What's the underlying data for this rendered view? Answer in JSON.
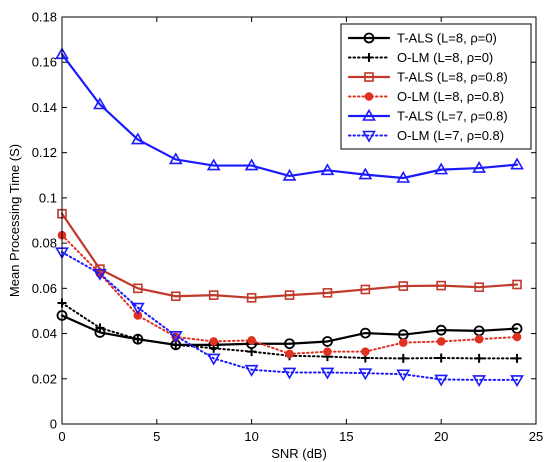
{
  "chart_data": {
    "type": "line",
    "title": "",
    "xlabel": "SNR (dB)",
    "ylabel": "Mean Processing Time (S)",
    "xlim": [
      0,
      25
    ],
    "ylim": [
      0,
      0.18
    ],
    "xticks": [
      0,
      5,
      10,
      15,
      20,
      25
    ],
    "xtick_labels": [
      "0",
      "5",
      "10",
      "15",
      "20",
      "25"
    ],
    "yticks": [
      0,
      0.02,
      0.04,
      0.06,
      0.08,
      0.1,
      0.12,
      0.14,
      0.16,
      0.18
    ],
    "ytick_labels": [
      "0",
      "0.02",
      "0.04",
      "0.06",
      "0.08",
      "0.1",
      "0.12",
      "0.14",
      "0.16",
      "0.18"
    ],
    "grid": false,
    "legend_position": "top-right",
    "x": [
      0,
      2,
      4,
      6,
      8,
      10,
      12,
      14,
      16,
      18,
      20,
      22,
      24
    ],
    "series": [
      {
        "name": "T-ALS (L=8, ρ=0)",
        "color": "#000000",
        "line_style": "solid",
        "marker": "circle",
        "values": [
          0.048,
          0.0405,
          0.0375,
          0.035,
          0.035,
          0.0355,
          0.0355,
          0.0365,
          0.0402,
          0.0395,
          0.0415,
          0.0412,
          0.0422
        ]
      },
      {
        "name": "O-LM (L=8, ρ=0)",
        "color": "#000000",
        "line_style": "dotted",
        "marker": "plus",
        "values": [
          0.0535,
          0.0425,
          0.0375,
          0.035,
          0.0335,
          0.032,
          0.0302,
          0.0298,
          0.0292,
          0.029,
          0.0292,
          0.029,
          0.029
        ]
      },
      {
        "name": "T-ALS (L=8, ρ=0.8)",
        "color": "#c0392b",
        "line_style": "solid",
        "marker": "square",
        "values": [
          0.093,
          0.0685,
          0.06,
          0.0565,
          0.057,
          0.0558,
          0.057,
          0.058,
          0.0595,
          0.061,
          0.0612,
          0.0605,
          0.0617
        ]
      },
      {
        "name": "O-LM (L=8, ρ=0.8)",
        "color": "#e03020",
        "line_style": "dotted",
        "marker": "dot",
        "values": [
          0.0835,
          0.0665,
          0.048,
          0.0385,
          0.0365,
          0.037,
          0.031,
          0.032,
          0.032,
          0.036,
          0.0365,
          0.0375,
          0.0385
        ]
      },
      {
        "name": "T-ALS (L=7, ρ=0.8)",
        "color": "#1a1aff",
        "line_style": "solid",
        "marker": "triangle-up",
        "values": [
          0.1635,
          0.1413,
          0.1258,
          0.117,
          0.1143,
          0.1143,
          0.1097,
          0.1122,
          0.1103,
          0.1088,
          0.1125,
          0.1132,
          0.1147
        ]
      },
      {
        "name": "O-LM (L=7, ρ=0.8)",
        "color": "#1a1aff",
        "line_style": "dotted",
        "marker": "triangle-down",
        "values": [
          0.076,
          0.0665,
          0.0515,
          0.039,
          0.029,
          0.024,
          0.0228,
          0.0228,
          0.0225,
          0.022,
          0.0197,
          0.0195,
          0.0195
        ]
      }
    ]
  }
}
